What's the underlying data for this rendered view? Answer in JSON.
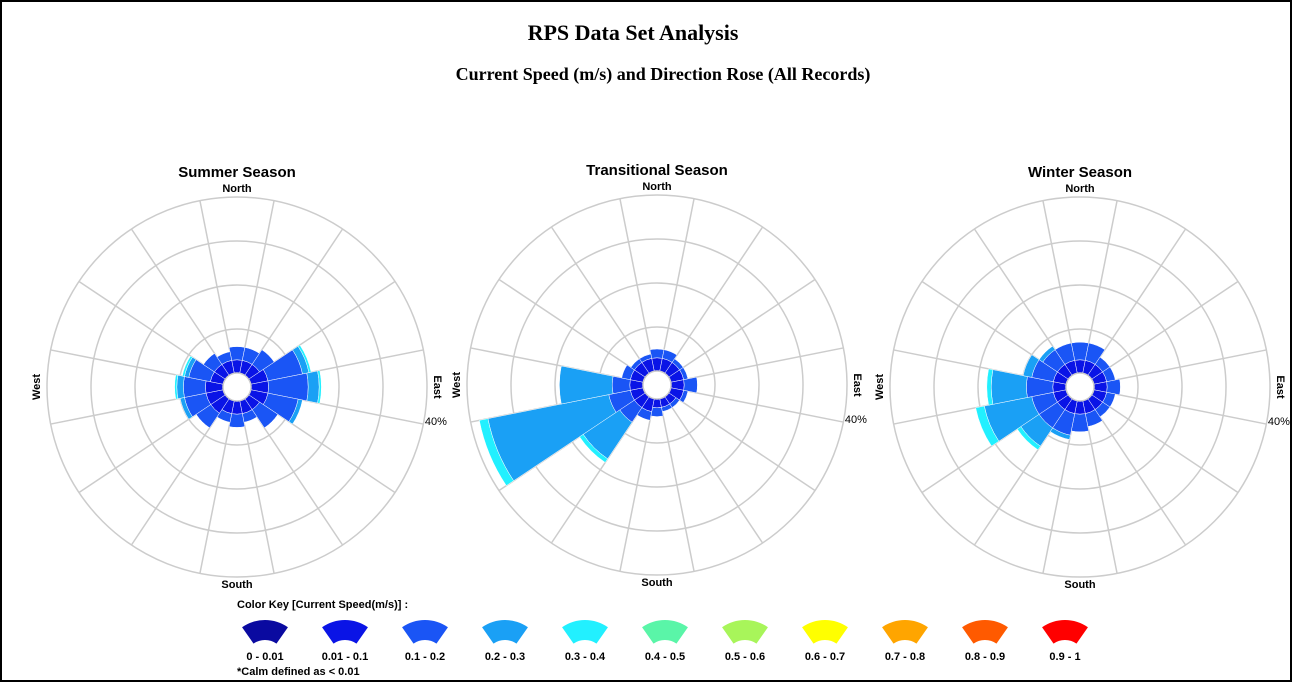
{
  "header": {
    "title": "RPS  Data Set Analysis",
    "subtitle": "Current Speed (m/s) and Direction Rose (All Records)"
  },
  "color_key": {
    "title": "Color Key [Current Speed(m/s)] :",
    "bins": [
      {
        "label": "0 - 0.01",
        "color": "#0a0aa0"
      },
      {
        "label": "0.01 - 0.1",
        "color": "#0a14e6"
      },
      {
        "label": "0.1 - 0.2",
        "color": "#1a55f5"
      },
      {
        "label": "0.2 - 0.3",
        "color": "#1aa0f5"
      },
      {
        "label": "0.3 - 0.4",
        "color": "#22f0ff"
      },
      {
        "label": "0.4 - 0.5",
        "color": "#5af5a8"
      },
      {
        "label": "0.5 - 0.6",
        "color": "#a8f55a"
      },
      {
        "label": "0.6 - 0.7",
        "color": "#ffff00"
      },
      {
        "label": "0.7 - 0.8",
        "color": "#ffa500"
      },
      {
        "label": "0.8 - 0.9",
        "color": "#ff5a00"
      },
      {
        "label": "0.9 - 1",
        "color": "#ff0000"
      }
    ],
    "note": "*Calm defined as < 0.01"
  },
  "chart_data": [
    {
      "type": "rose",
      "title": "Summer Season",
      "directions": {
        "north": "North",
        "east": "East",
        "south": "South",
        "west": "West"
      },
      "rlim": [
        0,
        40
      ],
      "rticks": [
        10,
        20,
        30,
        40
      ],
      "rtick_labels": [
        {
          "value": 40,
          "label": "40%"
        }
      ],
      "series": [
        {
          "name": "0.01 - 0.1",
          "color": "#0a14e6",
          "values": [
            3,
            3,
            3,
            4,
            4,
            4,
            3,
            3,
            3,
            3,
            4,
            4,
            4,
            3,
            3,
            3
          ]
        },
        {
          "name": "0.1 - 0.2",
          "color": "#1a55f5",
          "values": [
            3,
            3,
            4,
            8,
            9,
            7,
            5,
            2,
            3,
            2,
            4,
            5,
            5,
            5,
            3,
            2
          ]
        },
        {
          "name": "0.2 - 0.3",
          "color": "#1aa0f5",
          "values": [
            0,
            0,
            0,
            1.5,
            2.5,
            1,
            0,
            0,
            0,
            0,
            0,
            1,
            1.5,
            1,
            0,
            0
          ]
        },
        {
          "name": "0.3 - 0.4",
          "color": "#22f0ff",
          "values": [
            0,
            0,
            0,
            0.5,
            0.5,
            0,
            0,
            0,
            0,
            0,
            0,
            0,
            0.5,
            0.5,
            0,
            0
          ]
        }
      ]
    },
    {
      "type": "rose",
      "title": "Transitional Season",
      "directions": {
        "north": "North",
        "east": "East",
        "south": "South",
        "west": "West"
      },
      "rlim": [
        0,
        40
      ],
      "rticks": [
        10,
        20,
        30,
        40
      ],
      "rtick_labels": [
        {
          "value": 40,
          "label": "40%"
        }
      ],
      "series": [
        {
          "name": "0.01 - 0.1",
          "color": "#0a14e6",
          "values": [
            3,
            3,
            3,
            3,
            3,
            3,
            2,
            2,
            2,
            3,
            3,
            3,
            3,
            3,
            3,
            3
          ]
        },
        {
          "name": "0.1 - 0.2",
          "color": "#1a55f5",
          "values": [
            2,
            2,
            1,
            1,
            3,
            1,
            1,
            1,
            2,
            2,
            4,
            5,
            4,
            2,
            1,
            1
          ]
        },
        {
          "name": "0.2 - 0.3",
          "color": "#1aa0f5",
          "values": [
            0,
            0,
            0,
            0,
            0,
            0,
            0,
            0,
            0,
            0,
            10,
            28,
            12,
            0,
            0,
            0
          ]
        },
        {
          "name": "0.3 - 0.4",
          "color": "#22f0ff",
          "values": [
            0,
            0,
            0,
            0,
            0,
            0,
            0,
            0,
            0,
            0,
            1,
            2,
            0,
            0,
            0,
            0
          ]
        }
      ]
    },
    {
      "type": "rose",
      "title": "Winter Season",
      "directions": {
        "north": "North",
        "east": "East",
        "south": "South",
        "west": "West"
      },
      "rlim": [
        0,
        40
      ],
      "rticks": [
        10,
        20,
        30,
        40
      ],
      "rtick_labels": [
        {
          "value": 40,
          "label": "40%"
        }
      ],
      "series": [
        {
          "name": "0.01 - 0.1",
          "color": "#0a14e6",
          "values": [
            3,
            3,
            3,
            3,
            3,
            3,
            3,
            3,
            3,
            3,
            3,
            3,
            3,
            3,
            3,
            3
          ]
        },
        {
          "name": "0.1 - 0.2",
          "color": "#1a55f5",
          "values": [
            4,
            4,
            2,
            2,
            3,
            2,
            2,
            3,
            4,
            5,
            5,
            5,
            6,
            5,
            4,
            4
          ]
        },
        {
          "name": "0.2 - 0.3",
          "color": "#1aa0f5",
          "values": [
            0,
            0,
            0,
            0,
            0,
            0,
            0,
            0,
            0,
            1,
            5,
            11,
            8,
            2,
            1,
            0
          ]
        },
        {
          "name": "0.3 - 0.4",
          "color": "#22f0ff",
          "values": [
            0,
            0,
            0,
            0,
            0,
            0,
            0,
            0,
            0,
            0,
            1,
            2,
            1,
            0,
            0,
            0
          ]
        }
      ]
    }
  ]
}
